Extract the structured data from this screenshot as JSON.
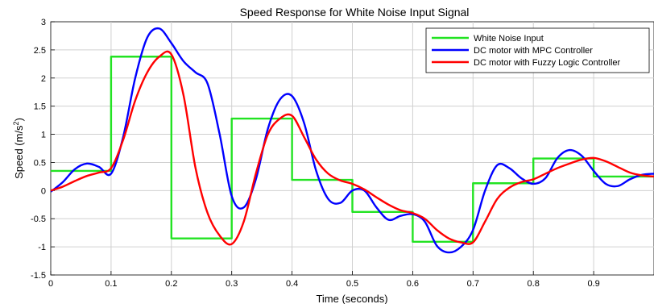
{
  "chart_data": {
    "type": "line",
    "title": "Speed Response for White Noise Input Signal",
    "xlabel": "Time (seconds)",
    "ylabel": "Speed (m/s",
    "ylabel_sup": "2",
    "ylabel_close": ")",
    "xlim": [
      0,
      1.0
    ],
    "ylim": [
      -1.5,
      3
    ],
    "xticks": [
      0,
      0.1,
      0.2,
      0.3,
      0.4,
      0.5,
      0.6,
      0.7,
      0.8,
      0.9
    ],
    "xtick_labels": [
      "0",
      "0.1",
      "0.2",
      "0.3",
      "0.4",
      "0.5",
      "0.6",
      "0.7",
      "0.8",
      "0.9"
    ],
    "yticks": [
      -1.5,
      -1,
      -0.5,
      0,
      0.5,
      1,
      1.5,
      2,
      2.5,
      3
    ],
    "ytick_labels": [
      "-1.5",
      "-1",
      "-0.5",
      "0",
      "0.5",
      "1",
      "1.5",
      "2",
      "2.5",
      "3"
    ],
    "grid": true,
    "legend_position": "top-right",
    "series": [
      {
        "name": "White Noise Input",
        "color": "#22e322",
        "step": true,
        "x": [
          0,
          0.1,
          0.1,
          0.2,
          0.2,
          0.3,
          0.3,
          0.4,
          0.4,
          0.5,
          0.5,
          0.6,
          0.6,
          0.7,
          0.7,
          0.8,
          0.8,
          0.9,
          0.9,
          1.0
        ],
        "y": [
          0.35,
          0.35,
          2.38,
          2.38,
          -0.85,
          -0.85,
          1.28,
          1.28,
          0.19,
          0.19,
          -0.38,
          -0.38,
          -0.91,
          -0.91,
          0.13,
          0.13,
          0.57,
          0.57,
          0.25,
          0.25
        ]
      },
      {
        "name": "DC motor with MPC Controller",
        "color": "#0000ff",
        "step": false,
        "x": [
          0,
          0.02,
          0.04,
          0.06,
          0.08,
          0.1,
          0.12,
          0.14,
          0.16,
          0.18,
          0.2,
          0.22,
          0.24,
          0.26,
          0.28,
          0.3,
          0.32,
          0.34,
          0.36,
          0.38,
          0.4,
          0.42,
          0.44,
          0.46,
          0.48,
          0.5,
          0.52,
          0.54,
          0.56,
          0.58,
          0.6,
          0.62,
          0.64,
          0.66,
          0.68,
          0.7,
          0.72,
          0.74,
          0.76,
          0.78,
          0.8,
          0.82,
          0.84,
          0.86,
          0.88,
          0.9,
          0.92,
          0.94,
          0.96,
          0.98,
          1.0
        ],
        "y": [
          -0.02,
          0.15,
          0.38,
          0.48,
          0.42,
          0.3,
          0.95,
          2.0,
          2.72,
          2.88,
          2.62,
          2.3,
          2.1,
          1.9,
          1.0,
          -0.1,
          -0.3,
          0.2,
          1.1,
          1.62,
          1.68,
          1.2,
          0.35,
          -0.15,
          -0.22,
          0.0,
          0.0,
          -0.3,
          -0.52,
          -0.45,
          -0.42,
          -0.55,
          -0.98,
          -1.1,
          -1.0,
          -0.7,
          0.0,
          0.45,
          0.4,
          0.22,
          0.12,
          0.22,
          0.58,
          0.72,
          0.62,
          0.35,
          0.12,
          0.08,
          0.2,
          0.28,
          0.3
        ]
      },
      {
        "name": "DC motor with Fuzzy Logic Controller",
        "color": "#ff0000",
        "step": false,
        "x": [
          0,
          0.02,
          0.04,
          0.06,
          0.08,
          0.1,
          0.12,
          0.14,
          0.16,
          0.18,
          0.2,
          0.22,
          0.24,
          0.26,
          0.28,
          0.3,
          0.32,
          0.34,
          0.36,
          0.38,
          0.4,
          0.42,
          0.44,
          0.46,
          0.48,
          0.5,
          0.52,
          0.54,
          0.56,
          0.58,
          0.6,
          0.62,
          0.64,
          0.66,
          0.68,
          0.7,
          0.72,
          0.74,
          0.76,
          0.78,
          0.8,
          0.82,
          0.84,
          0.86,
          0.88,
          0.9,
          0.92,
          0.94,
          0.96,
          0.98,
          1.0
        ],
        "y": [
          0.0,
          0.07,
          0.17,
          0.26,
          0.32,
          0.4,
          0.9,
          1.6,
          2.1,
          2.38,
          2.42,
          1.7,
          0.4,
          -0.4,
          -0.8,
          -0.95,
          -0.55,
          0.3,
          1.0,
          1.28,
          1.33,
          0.95,
          0.55,
          0.3,
          0.18,
          0.12,
          0.02,
          -0.12,
          -0.25,
          -0.35,
          -0.4,
          -0.5,
          -0.7,
          -0.85,
          -0.92,
          -0.92,
          -0.55,
          -0.15,
          0.05,
          0.15,
          0.2,
          0.3,
          0.4,
          0.48,
          0.55,
          0.58,
          0.52,
          0.42,
          0.32,
          0.27,
          0.25
        ]
      }
    ]
  }
}
